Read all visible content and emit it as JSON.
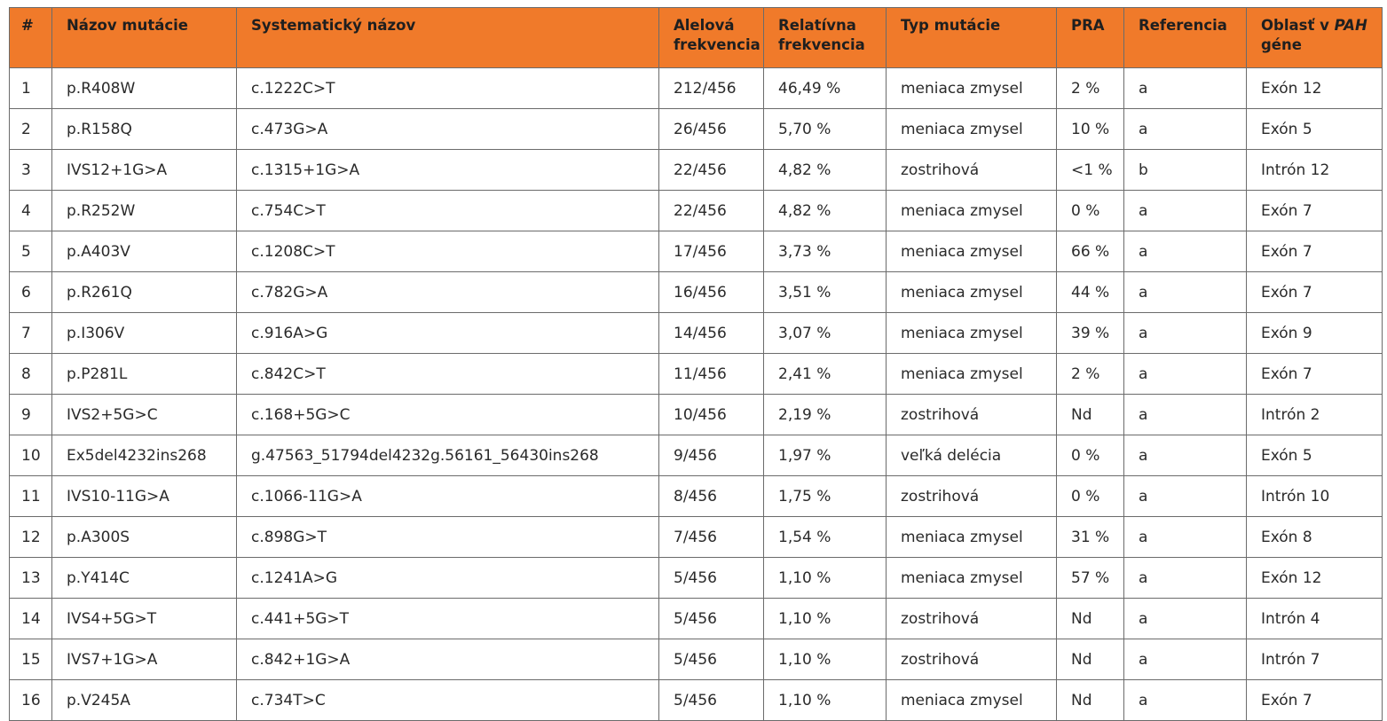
{
  "table": {
    "headers": [
      {
        "id": "num",
        "line1": "#",
        "line2": ""
      },
      {
        "id": "name",
        "line1": "Názov mutácie",
        "line2": ""
      },
      {
        "id": "systematic",
        "line1": "Systematický názov",
        "line2": ""
      },
      {
        "id": "allele_freq",
        "line1": "Alelová",
        "line2": "frekvencia"
      },
      {
        "id": "relative_freq",
        "line1": "Relatívna",
        "line2": "frekvencia"
      },
      {
        "id": "type",
        "line1": "Typ mutácie",
        "line2": ""
      },
      {
        "id": "pra",
        "line1": "PRA",
        "line2": ""
      },
      {
        "id": "reference",
        "line1": "Referencia",
        "line2": ""
      },
      {
        "id": "region",
        "line1": "Oblasť v ",
        "line1_italic": "PAH",
        "line2": "géne"
      }
    ],
    "rows": [
      [
        "1",
        "p.R408W",
        "c.1222C>T",
        "212/456",
        "46,49 %",
        "meniaca zmysel",
        "2 %",
        "a",
        "Exón 12"
      ],
      [
        "2",
        "p.R158Q",
        "c.473G>A",
        "26/456",
        "5,70 %",
        "meniaca zmysel",
        "10 %",
        "a",
        "Exón 5"
      ],
      [
        "3",
        "IVS12+1G>A",
        "c.1315+1G>A",
        "22/456",
        "4,82 %",
        "zostrihová",
        "<1 %",
        "b",
        "Intrón 12"
      ],
      [
        "4",
        "p.R252W",
        "c.754C>T",
        "22/456",
        "4,82 %",
        "meniaca zmysel",
        "0 %",
        "a",
        "Exón 7"
      ],
      [
        "5",
        "p.A403V",
        "c.1208C>T",
        "17/456",
        "3,73 %",
        "meniaca zmysel",
        "66 %",
        "a",
        "Exón 7"
      ],
      [
        "6",
        "p.R261Q",
        "c.782G>A",
        "16/456",
        "3,51 %",
        "meniaca zmysel",
        "44 %",
        "a",
        "Exón 7"
      ],
      [
        "7",
        "p.I306V",
        "c.916A>G",
        "14/456",
        "3,07 %",
        "meniaca zmysel",
        "39 %",
        "a",
        "Exón 9"
      ],
      [
        "8",
        "p.P281L",
        "c.842C>T",
        "11/456",
        "2,41 %",
        "meniaca zmysel",
        "2 %",
        "a",
        "Exón 7"
      ],
      [
        "9",
        "IVS2+5G>C",
        "c.168+5G>C",
        "10/456",
        "2,19 %",
        "zostrihová",
        "Nd",
        "a",
        "Intrón 2"
      ],
      [
        "10",
        "Ex5del4232ins268",
        "g.47563_51794del4232g.56161_56430ins268",
        "9/456",
        "1,97 %",
        "veľká delécia",
        "0 %",
        "a",
        "Exón 5"
      ],
      [
        "11",
        "IVS10-11G>A",
        "c.1066-11G>A",
        "8/456",
        "1,75 %",
        "zostrihová",
        "0 %",
        "a",
        "Intrón 10"
      ],
      [
        "12",
        "p.A300S",
        "c.898G>T",
        "7/456",
        "1,54 %",
        "meniaca zmysel",
        "31 %",
        "a",
        "Exón 8"
      ],
      [
        "13",
        "p.Y414C",
        "c.1241A>G",
        "5/456",
        "1,10 %",
        "meniaca zmysel",
        "57 %",
        "a",
        "Exón 12"
      ],
      [
        "14",
        "IVS4+5G>T",
        "c.441+5G>T",
        "5/456",
        "1,10 %",
        "zostrihová",
        "Nd",
        "a",
        "Intrón 4"
      ],
      [
        "15",
        "IVS7+1G>A",
        "c.842+1G>A",
        "5/456",
        "1,10 %",
        "zostrihová",
        "Nd",
        "a",
        "Intrón 7"
      ],
      [
        "16",
        "p.V245A",
        "c.734T>C",
        "5/456",
        "1,10 %",
        "meniaca zmysel",
        "Nd",
        "a",
        "Exón 7"
      ]
    ],
    "colors": {
      "header_bg": "#f07a2a",
      "border": "#6b6b6b",
      "text": "#2a2a2a"
    }
  }
}
